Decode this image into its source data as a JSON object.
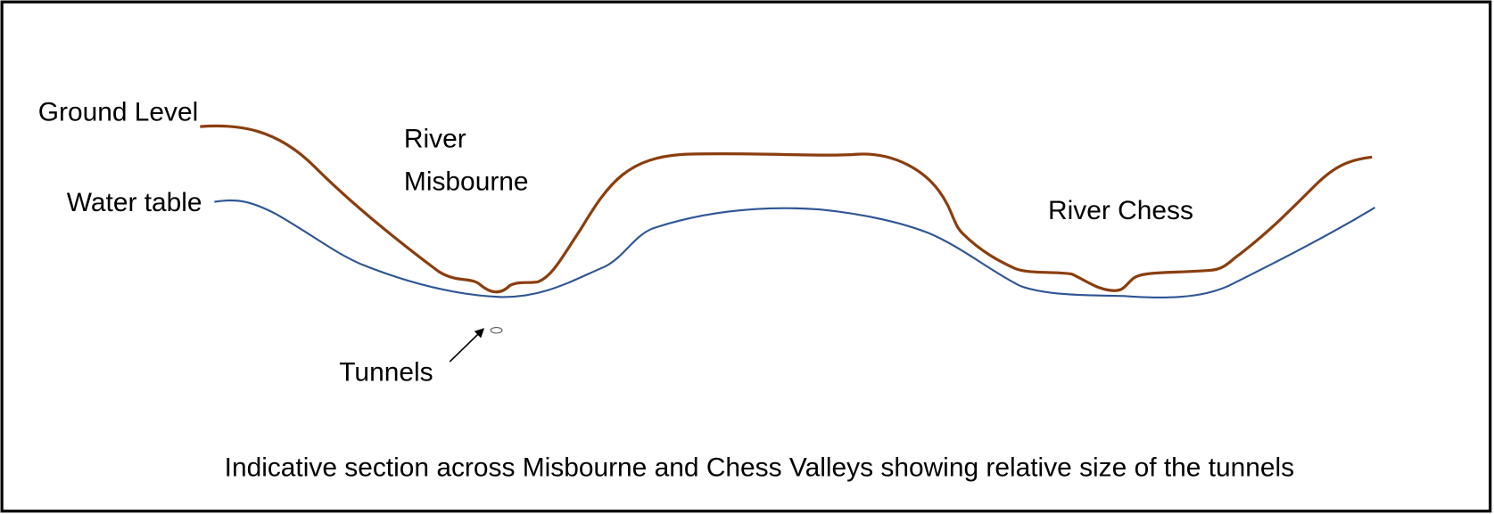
{
  "labels": {
    "ground_level": "Ground Level",
    "water_table": "Water table",
    "river_misbourne": [
      "River",
      "Misbourne"
    ],
    "river_chess": "River Chess",
    "tunnels": "Tunnels"
  },
  "caption": "Indicative section across Misbourne and Chess Valleys showing relative size of the tunnels"
}
